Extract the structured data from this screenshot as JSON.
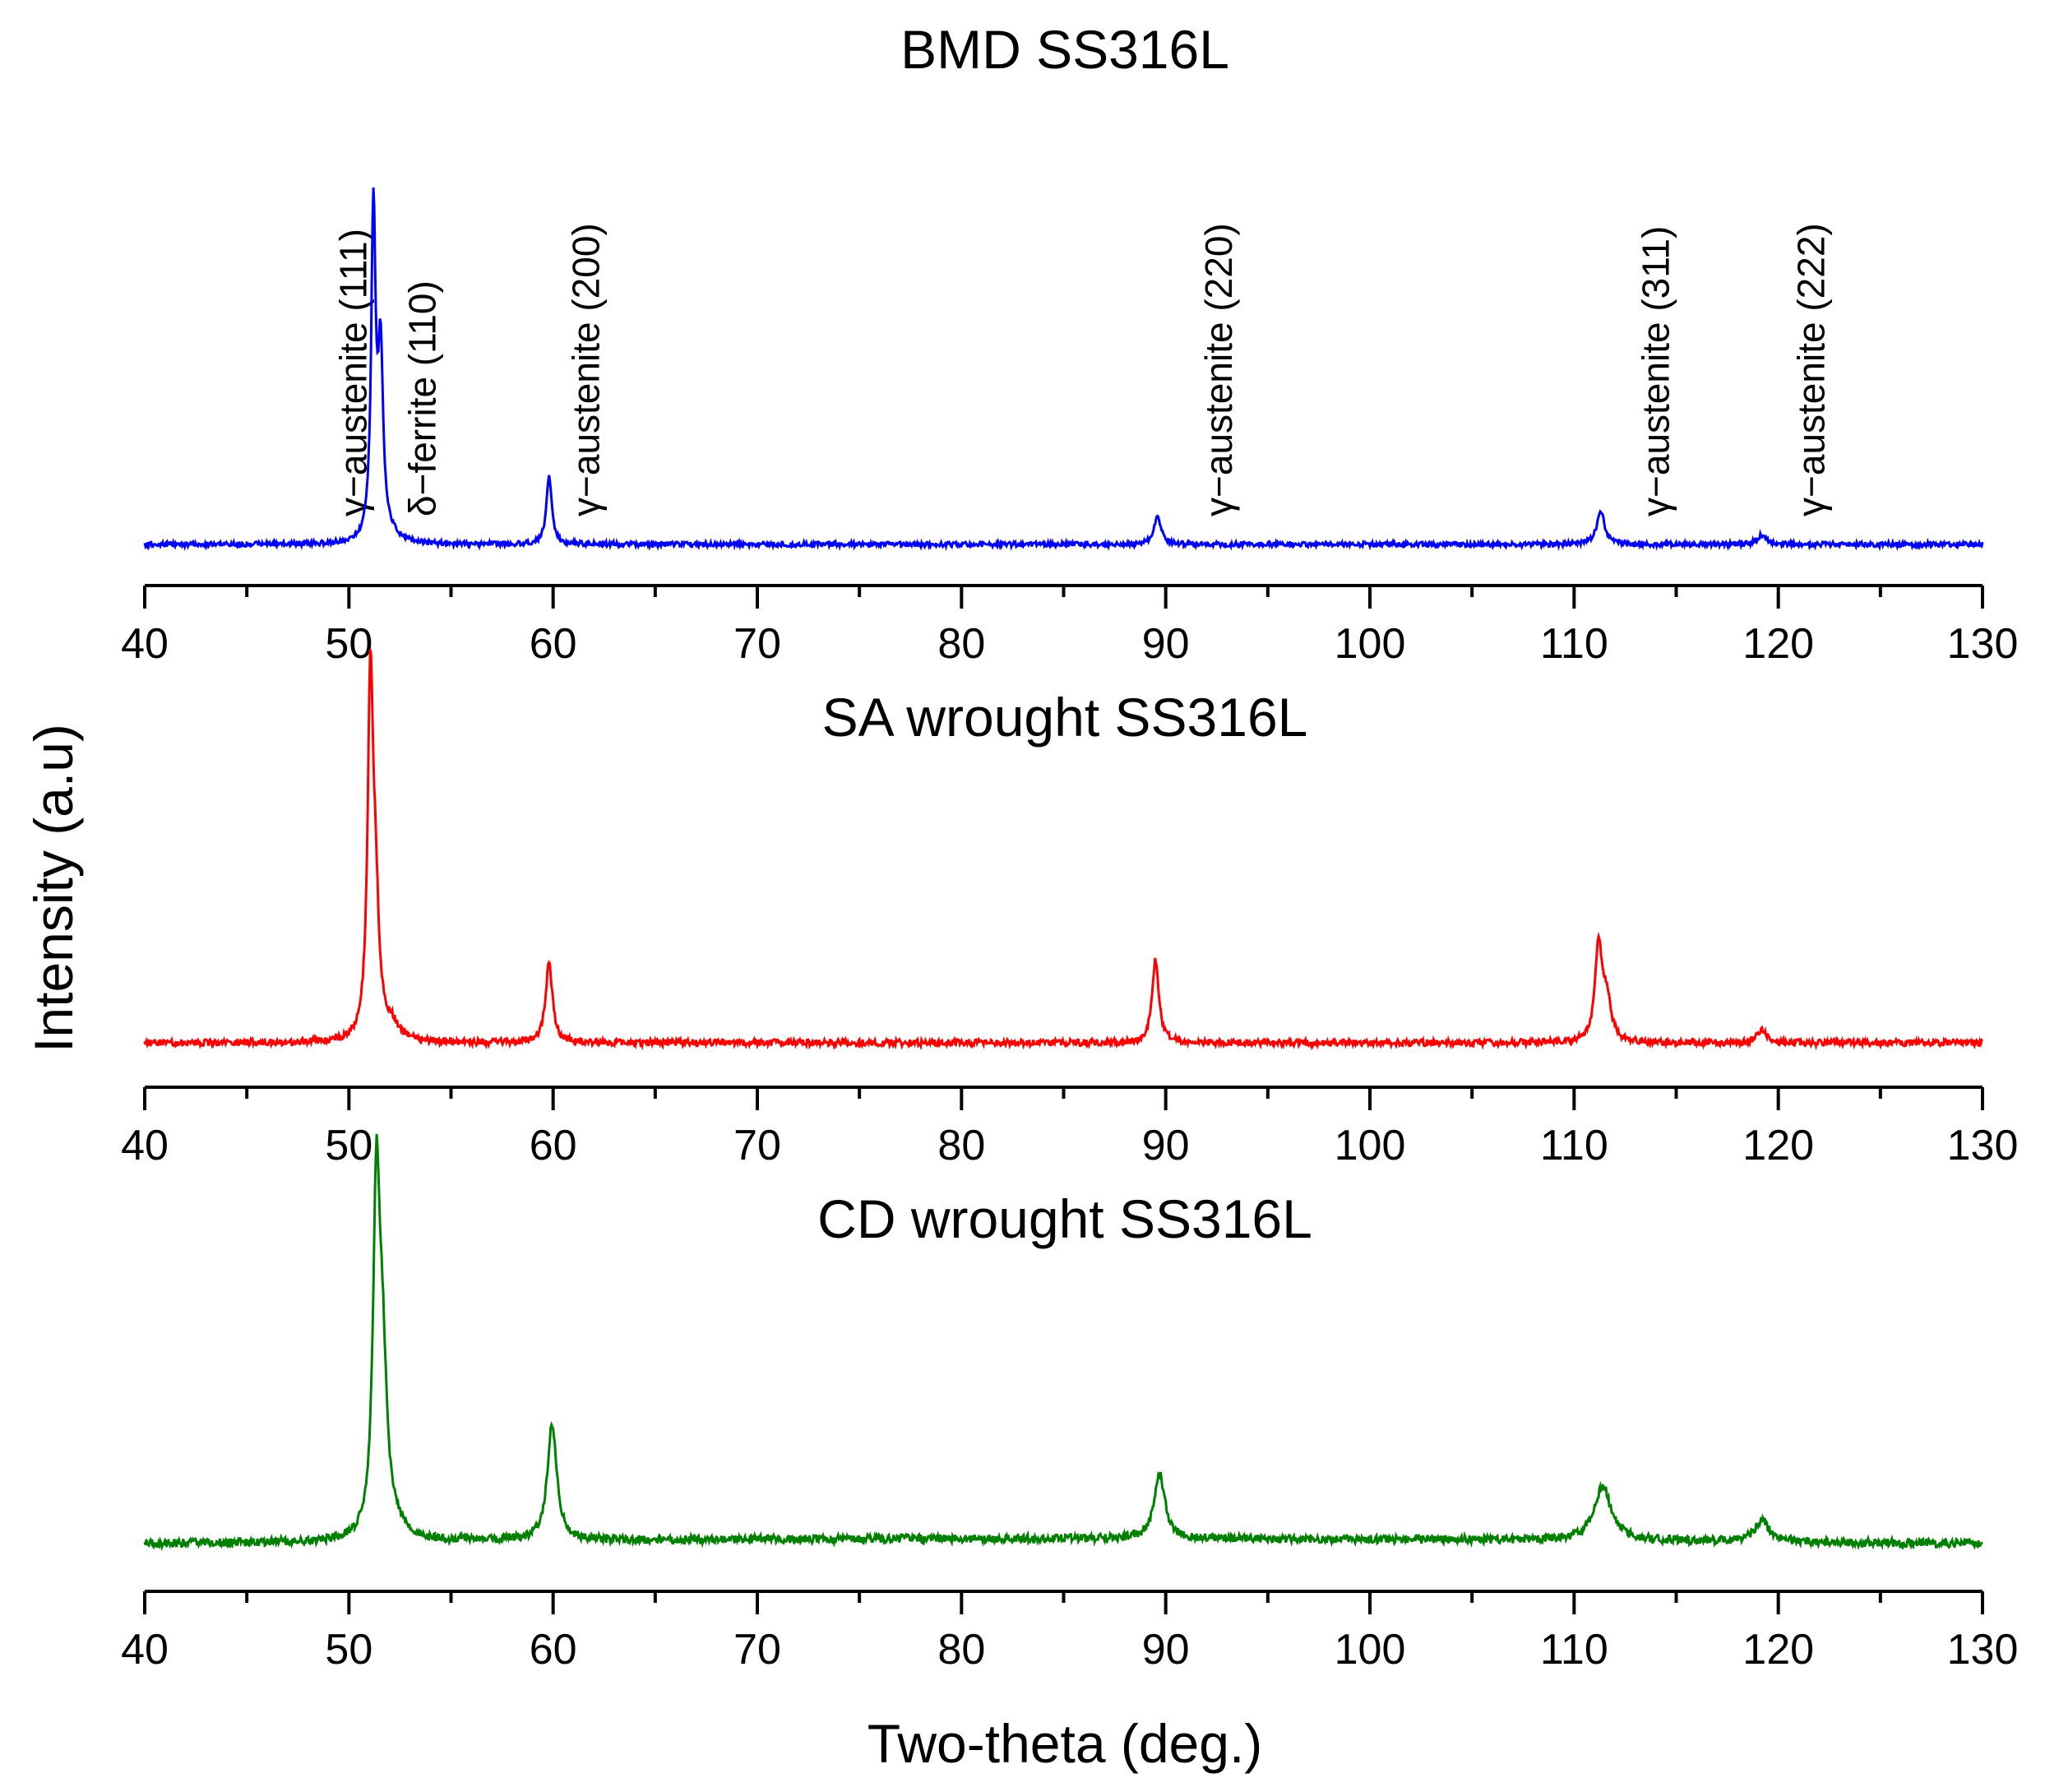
{
  "figure": {
    "ylabel": "Intensity (a.u)",
    "xlabel": "Two-theta (deg.)"
  },
  "chart_data": [
    {
      "type": "line",
      "title": "BMD SS316L",
      "color": "#0000ff",
      "xlim": [
        40,
        130
      ],
      "xticks": [
        40,
        50,
        60,
        70,
        80,
        90,
        100,
        110,
        120,
        130
      ],
      "tick_labels": [
        "40",
        "50",
        "60",
        "70",
        "80",
        "90",
        "100",
        "110",
        "120",
        "130"
      ],
      "y_scale_max": 1.0,
      "baseline": 0.0,
      "peaks": [
        {
          "x": 51.2,
          "height": 1.0,
          "width": 0.13
        },
        {
          "x": 51.55,
          "height": 0.55,
          "width": 0.15
        },
        {
          "x": 52.1,
          "height": 0.02,
          "width": 0.5
        },
        {
          "x": 59.8,
          "height": 0.205,
          "width": 0.16
        },
        {
          "x": 89.6,
          "height": 0.085,
          "width": 0.2
        },
        {
          "x": 111.3,
          "height": 0.105,
          "width": 0.22
        },
        {
          "x": 119.2,
          "height": 0.03,
          "width": 0.25
        }
      ],
      "annotations": [
        {
          "text": "γ−austenite (111)",
          "x": 50.2
        },
        {
          "text": "δ−ferrite (110)",
          "x": 53.6
        },
        {
          "text": "γ−austenite (200)",
          "x": 61.6
        },
        {
          "text": "γ−austenite (220)",
          "x": 92.6
        },
        {
          "text": "γ−austenite (311)",
          "x": 114.0
        },
        {
          "text": "γ−austenite (222)",
          "x": 121.6
        }
      ]
    },
    {
      "type": "line",
      "title": "SA wrought SS316L",
      "color": "#ff0000",
      "xlim": [
        40,
        130
      ],
      "xticks": [
        40,
        50,
        60,
        70,
        80,
        90,
        100,
        110,
        120,
        130
      ],
      "tick_labels": [
        "40",
        "50",
        "60",
        "70",
        "80",
        "90",
        "100",
        "110",
        "120",
        "130"
      ],
      "y_scale_max": 1.0,
      "baseline": 0.0,
      "peaks": [
        {
          "x": 51.05,
          "height": 1.0,
          "width": 0.16
        },
        {
          "x": 51.3,
          "height": 0.35,
          "width": 0.2
        },
        {
          "x": 52.1,
          "height": 0.045,
          "width": 0.45
        },
        {
          "x": 59.8,
          "height": 0.23,
          "width": 0.2
        },
        {
          "x": 89.5,
          "height": 0.24,
          "width": 0.2
        },
        {
          "x": 111.2,
          "height": 0.28,
          "width": 0.2
        },
        {
          "x": 111.6,
          "height": 0.12,
          "width": 0.25
        },
        {
          "x": 119.2,
          "height": 0.04,
          "width": 0.25
        }
      ],
      "annotations": []
    },
    {
      "type": "line",
      "title": "CD wrought SS316L",
      "color": "#008000",
      "xlim": [
        40,
        130
      ],
      "xticks": [
        40,
        50,
        60,
        70,
        80,
        90,
        100,
        110,
        120,
        130
      ],
      "tick_labels": [
        "40",
        "50",
        "60",
        "70",
        "80",
        "90",
        "100",
        "110",
        "120",
        "130"
      ],
      "y_scale_max": 1.0,
      "baseline": 0.0,
      "peaks": [
        {
          "x": 51.35,
          "height": 1.0,
          "width": 0.2
        },
        {
          "x": 51.65,
          "height": 0.45,
          "width": 0.25
        },
        {
          "x": 52.3,
          "height": 0.03,
          "width": 0.6
        },
        {
          "x": 59.95,
          "height": 0.345,
          "width": 0.28
        },
        {
          "x": 89.7,
          "height": 0.19,
          "width": 0.32
        },
        {
          "x": 111.4,
          "height": 0.16,
          "width": 0.5
        },
        {
          "x": 119.2,
          "height": 0.06,
          "width": 0.45
        }
      ],
      "annotations": []
    }
  ]
}
